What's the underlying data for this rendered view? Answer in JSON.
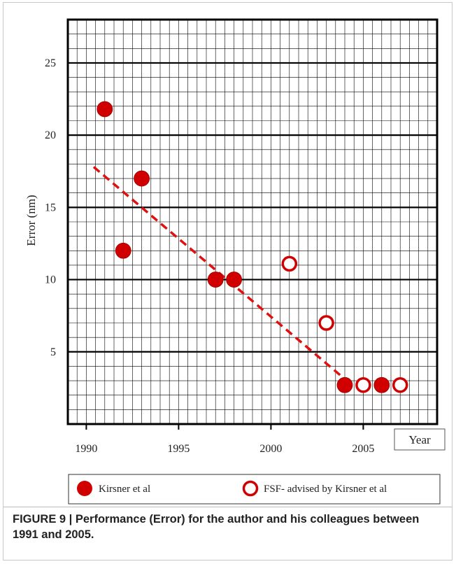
{
  "colors": {
    "accent": "#d10000",
    "grid": "#000000",
    "text": "#222222"
  },
  "chart_data": {
    "type": "scatter",
    "x_label": "Year",
    "y_label": "Error (nm)",
    "xlim": [
      1989,
      2009
    ],
    "ylim": [
      0,
      28
    ],
    "x_ticks": [
      1990,
      1995,
      2000,
      2005
    ],
    "y_ticks": [
      5,
      10,
      15,
      20,
      25
    ],
    "grid": true,
    "legend_position": "bottom",
    "series": [
      {
        "name": "Kirsner et al",
        "marker": "filled-circle",
        "color": "#d10000",
        "points": [
          {
            "x": 1991,
            "y": 21.8
          },
          {
            "x": 1992,
            "y": 12
          },
          {
            "x": 1993,
            "y": 17
          },
          {
            "x": 1997,
            "y": 10
          },
          {
            "x": 1998,
            "y": 10
          },
          {
            "x": 2004,
            "y": 2.7
          },
          {
            "x": 2006,
            "y": 2.7
          }
        ]
      },
      {
        "name": "FSF- advised by Kirsner et al",
        "marker": "hollow-circle",
        "color": "#d10000",
        "points": [
          {
            "x": 2001,
            "y": 11.1
          },
          {
            "x": 2003,
            "y": 7
          },
          {
            "x": 2005,
            "y": 2.7
          },
          {
            "x": 2007,
            "y": 2.7
          }
        ]
      }
    ],
    "trend_line": {
      "style": "dashed",
      "color": "#d10000",
      "points": [
        {
          "x": 1990.4,
          "y": 17.8
        },
        {
          "x": 2004.2,
          "y": 2.9
        }
      ]
    }
  },
  "caption": "FIGURE 9 | Performance (Error) for the author and his colleagues between 1991 and 2005."
}
